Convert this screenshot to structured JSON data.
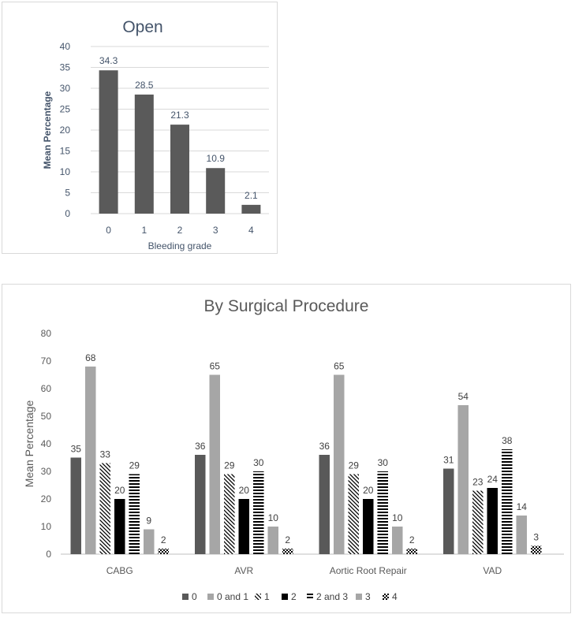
{
  "chart_data": [
    {
      "type": "bar",
      "title": "Open",
      "xlabel": "Bleeding grade",
      "ylabel": "Mean Percentage",
      "categories": [
        "0",
        "1",
        "2",
        "3",
        "4"
      ],
      "values": [
        34.3,
        28.5,
        21.3,
        10.9,
        2.1
      ],
      "data_labels": [
        "34.3",
        "28.5",
        "21.3",
        "10.9",
        "2.1"
      ],
      "ylim": [
        0,
        40
      ],
      "yticks": [
        "0",
        "5",
        "10",
        "15",
        "20",
        "25",
        "30",
        "35",
        "40"
      ],
      "grid": true,
      "bar_color": "#5a5a5a",
      "title_color": "#44546a",
      "text_color": "#44546a"
    },
    {
      "type": "bar",
      "title": "By Surgical Procedure",
      "xlabel": "",
      "ylabel": "Mean Percentage",
      "categories": [
        "CABG",
        "AVR",
        "Aortic Root Repair",
        "VAD"
      ],
      "series": [
        {
          "name": "0",
          "values": [
            35,
            36,
            36,
            31
          ],
          "fill": "solid-dark"
        },
        {
          "name": "0 and 1",
          "values": [
            68,
            65,
            65,
            54
          ],
          "fill": "solid-light"
        },
        {
          "name": "1",
          "values": [
            33,
            29,
            29,
            23
          ],
          "fill": "diagonal"
        },
        {
          "name": "2",
          "values": [
            20,
            20,
            20,
            24
          ],
          "fill": "solid-black"
        },
        {
          "name": "2 and 3",
          "values": [
            29,
            30,
            30,
            38
          ],
          "fill": "horizontal"
        },
        {
          "name": "3",
          "values": [
            9,
            10,
            10,
            14
          ],
          "fill": "solid-gray"
        },
        {
          "name": "4",
          "values": [
            2,
            2,
            2,
            3
          ],
          "fill": "checker"
        }
      ],
      "ylim": [
        0,
        80
      ],
      "yticks": [
        "0",
        "10",
        "20",
        "30",
        "40",
        "50",
        "60",
        "70",
        "80"
      ],
      "grid": false,
      "legend_position": "bottom",
      "title_color": "#595959",
      "text_color": "#595959"
    }
  ]
}
